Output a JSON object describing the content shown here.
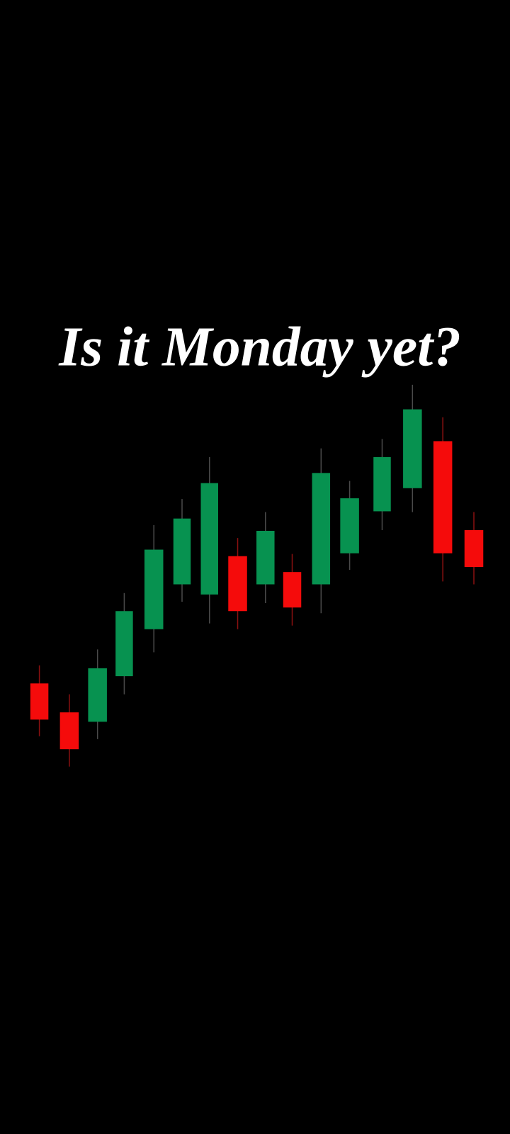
{
  "header": {
    "title": "Is it Monday yet?"
  }
}
